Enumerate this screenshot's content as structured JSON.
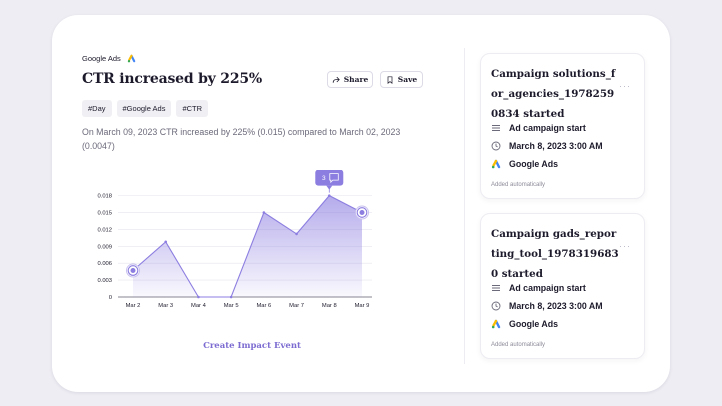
{
  "event": {
    "source": "Google Ads",
    "title": "CTR increased by 225%",
    "share_label": "Share",
    "save_label": "Save",
    "tags": [
      "#Day",
      "#Google Ads",
      "#CTR"
    ],
    "description": "On March 09, 2023 CTR increased by 225% (0.015) compared to March 02, 2023 (0.0047)",
    "comment_count": "3",
    "create_link": "Create Impact Event"
  },
  "chart_data": {
    "type": "area",
    "categories": [
      "Mar 2",
      "Mar 3",
      "Mar 4",
      "Mar 5",
      "Mar 6",
      "Mar 7",
      "Mar 8",
      "Mar 9"
    ],
    "values": [
      0.0047,
      0.0098,
      0.0,
      0.0,
      0.015,
      0.0112,
      0.018,
      0.015
    ],
    "yticks": [
      "0",
      "0.003",
      "0.006",
      "0.009",
      "0.012",
      "0.015",
      "0.018"
    ],
    "ylim": [
      0,
      0.019
    ],
    "highlighted": [
      "Mar 2",
      "Mar 9"
    ],
    "comment_marker_on": "Mar 8",
    "grid": true,
    "color": "#8c7ee0"
  },
  "cards": [
    {
      "title": "Campaign solutions_for_agencies_19782590834 started",
      "type_label": "Ad campaign start",
      "time": "March 8, 2023 3:00 AM",
      "source": "Google Ads",
      "footer": "Added automatically"
    },
    {
      "title": "Campaign gads_reporting_tool_19783196830 started",
      "type_label": "Ad campaign start",
      "time": "March 8, 2023 3:00 AM",
      "source": "Google Ads",
      "footer": "Added automatically"
    }
  ],
  "icons": {
    "source": "google-ads-icon",
    "share": "share-icon",
    "save": "bookmark-icon",
    "type": "list-icon",
    "time": "clock-icon",
    "menu": "more-icon",
    "comment": "comment-icon"
  },
  "colors": {
    "accent": "#7c6cd1",
    "area": "#8c7ee0",
    "background": "#eeedf3",
    "google_blue": "#4285f4",
    "google_yellow": "#fbbc04"
  }
}
